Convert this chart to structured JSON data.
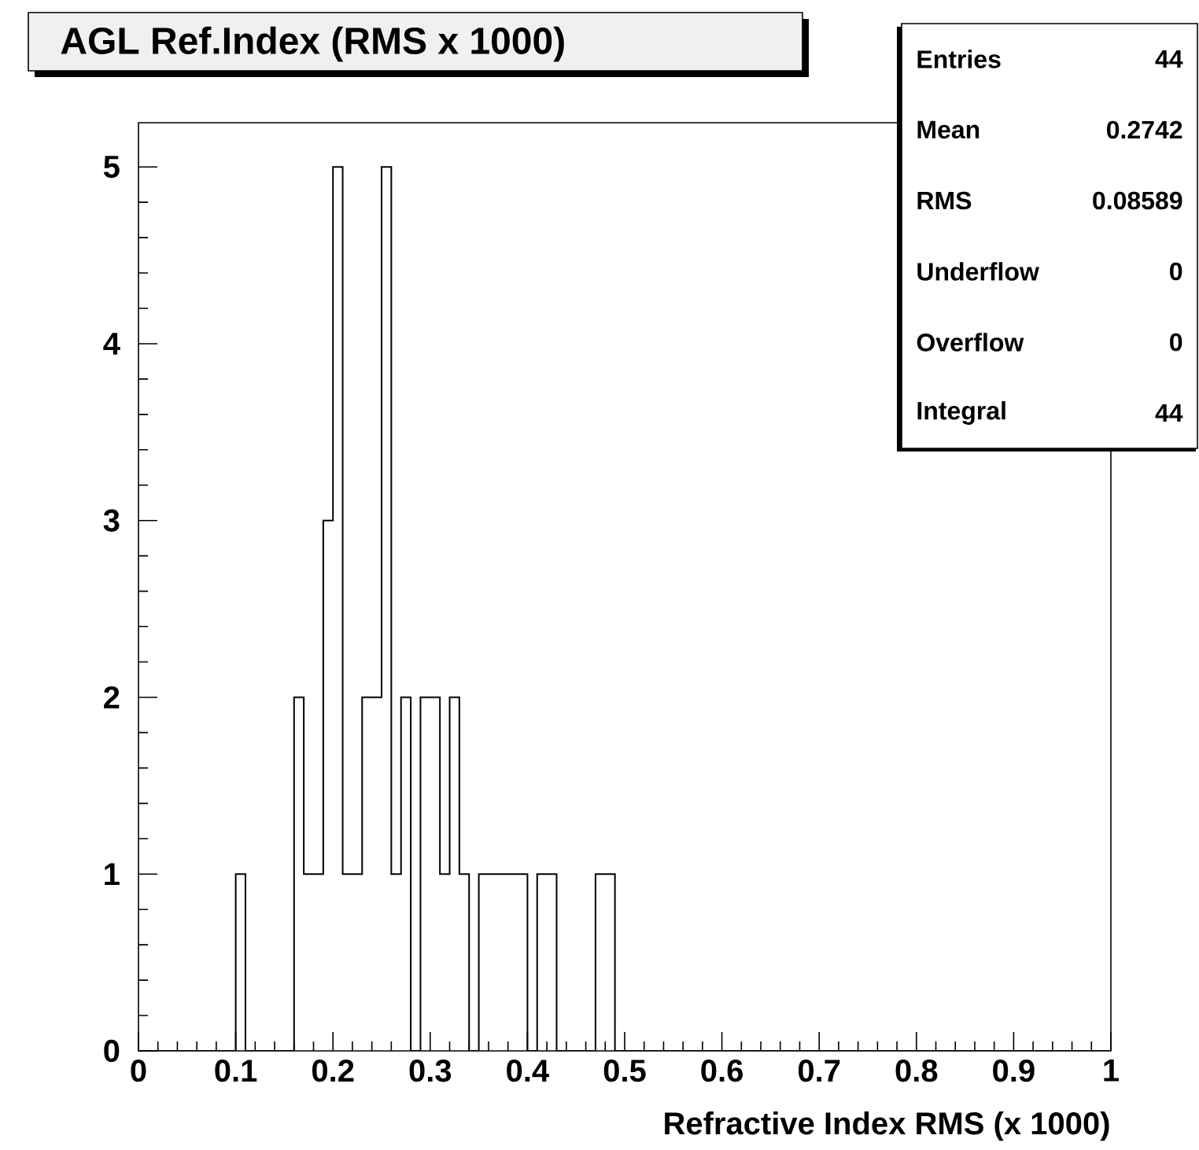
{
  "chart_data": {
    "type": "histogram",
    "title": "AGL Ref.Index (RMS x 1000)",
    "xlabel": "Refractive Index RMS (x 1000)",
    "bins": [
      0,
      0.01,
      0.02,
      0.03,
      0.04,
      0.05,
      0.06,
      0.07,
      0.08,
      0.09,
      0.1,
      0.11,
      0.12,
      0.13,
      0.14,
      0.15,
      0.16,
      0.17,
      0.18,
      0.19,
      0.2,
      0.21,
      0.22,
      0.23,
      0.24,
      0.25,
      0.26,
      0.27,
      0.28,
      0.29,
      0.3,
      0.31,
      0.32,
      0.33,
      0.34,
      0.35,
      0.36,
      0.37,
      0.38,
      0.39,
      0.4,
      0.41,
      0.42,
      0.43,
      0.44,
      0.45,
      0.46,
      0.47,
      0.48,
      0.49,
      0.5,
      0.51,
      0.52,
      0.53,
      0.54,
      0.55,
      0.56,
      0.57,
      0.58,
      0.59,
      0.6,
      0.61,
      0.62,
      0.63,
      0.64,
      0.65,
      0.66,
      0.67,
      0.68,
      0.69,
      0.7,
      0.71,
      0.72,
      0.73,
      0.74,
      0.75,
      0.76,
      0.77,
      0.78,
      0.79,
      0.8,
      0.81,
      0.82,
      0.83,
      0.84,
      0.85,
      0.86,
      0.87,
      0.88,
      0.89,
      0.9,
      0.91,
      0.92,
      0.93,
      0.94,
      0.95,
      0.96,
      0.97,
      0.98,
      0.99,
      1
    ],
    "values": [
      0,
      0,
      0,
      0,
      0,
      0,
      0,
      0,
      0,
      0,
      1,
      0,
      0,
      0,
      0,
      0,
      2,
      1,
      1,
      3,
      5,
      1,
      1,
      2,
      2,
      5,
      1,
      2,
      0,
      2,
      2,
      1,
      2,
      1,
      0,
      1,
      1,
      1,
      1,
      1,
      0,
      1,
      1,
      0,
      0,
      0,
      0,
      1,
      1,
      0,
      0,
      0,
      0,
      0,
      0,
      0,
      0,
      0,
      0,
      0,
      0,
      0,
      0,
      0,
      0,
      0,
      0,
      0,
      0,
      0,
      0,
      0,
      0,
      0,
      0,
      0,
      0,
      0,
      0,
      0,
      0,
      0,
      0,
      0,
      0,
      0,
      0,
      0,
      0,
      0,
      0,
      0,
      0,
      0,
      0,
      0,
      0,
      0,
      0,
      0
    ],
    "color": "#000000",
    "xlim": [
      0,
      1
    ],
    "ylim": [
      0,
      5.25
    ],
    "xticks": [
      0,
      0.1,
      0.2,
      0.3,
      0.4,
      0.5,
      0.6,
      0.7,
      0.8,
      0.9,
      1
    ],
    "yticks": [
      0,
      1,
      2,
      3,
      4,
      5
    ],
    "grid": false,
    "annotations": [
      "Entries",
      "44",
      "Mean",
      "0.2742",
      "RMS",
      "0.08589",
      "Underflow",
      "0",
      "Overflow",
      "0",
      "Integral",
      "44"
    ]
  }
}
